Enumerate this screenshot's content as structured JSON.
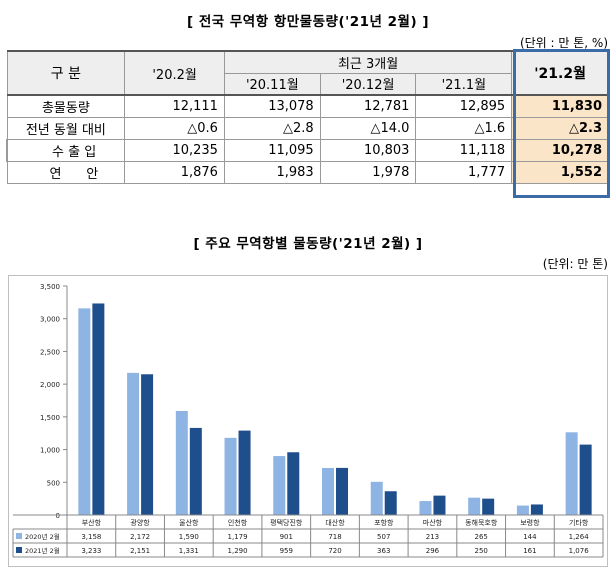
{
  "table_section": {
    "title": "[ 전국 무역항 항만물동량('21년 2월) ]",
    "unit": "(단위 : 만 톤, %)",
    "header": {
      "category": "구 분",
      "prev_year": "'20.2월",
      "recent_group": "최근 3개월",
      "months": [
        "'20.11월",
        "'20.12월",
        "'21.1월"
      ],
      "current": "'21.2월"
    },
    "rows": [
      {
        "label": "총물동량",
        "values": [
          "12,111",
          "13,078",
          "12,781",
          "12,895"
        ],
        "current": "11,830"
      },
      {
        "label": "전년 동월 대비",
        "values": [
          "△0.6",
          "△2.8",
          "△14.0",
          "△1.6"
        ],
        "current": "△2.3"
      },
      {
        "label": "수 출 입",
        "values": [
          "10,235",
          "11,095",
          "10,803",
          "11,118"
        ],
        "current": "10,278"
      },
      {
        "label": "연      안",
        "values": [
          "1,876",
          "1,983",
          "1,978",
          "1,777"
        ],
        "current": "1,552"
      }
    ]
  },
  "chart_section": {
    "title": "[ 주요 무역항별 물동량('21년 2월) ]",
    "unit": "(단위: 만 톤)"
  },
  "chart_data": {
    "type": "bar",
    "categories": [
      "부산항",
      "광양항",
      "울산항",
      "인천항",
      "평택당진항",
      "대산항",
      "포항항",
      "마산항",
      "동해묵호항",
      "보령항",
      "기타항"
    ],
    "series": [
      {
        "name": "2020년 2월",
        "color": "#8eb4e3",
        "values": [
          3158,
          2172,
          1590,
          1179,
          901,
          718,
          507,
          213,
          265,
          144,
          1264
        ],
        "labels": [
          "3,158",
          "2,172",
          "1,590",
          "1,179",
          "901",
          "718",
          "507",
          "213",
          "265",
          "144",
          "1,264"
        ]
      },
      {
        "name": "2021년 2월",
        "color": "#1f4e8c",
        "values": [
          3233,
          2151,
          1331,
          1290,
          959,
          720,
          363,
          296,
          250,
          161,
          1076
        ],
        "labels": [
          "3,233",
          "2,151",
          "1,331",
          "1,290",
          "959",
          "720",
          "363",
          "296",
          "250",
          "161",
          "1,076"
        ]
      }
    ],
    "yticks": [
      "0",
      "500",
      "1,000",
      "1,500",
      "2,000",
      "2,500",
      "3,000",
      "3,500"
    ],
    "ylim": [
      0,
      3500
    ],
    "grid": false,
    "legend": "data-table"
  }
}
